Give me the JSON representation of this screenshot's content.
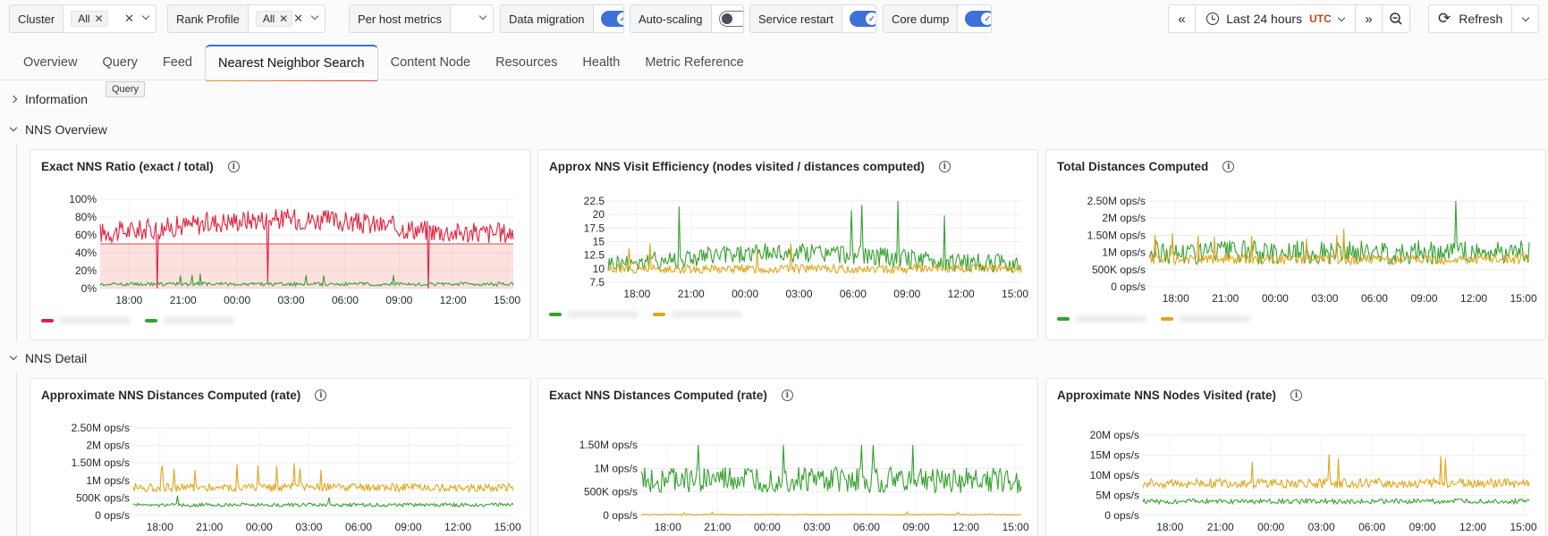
{
  "toolbar": {
    "variables": [
      {
        "label": "Cluster",
        "chips": [
          "All"
        ],
        "type": "multi"
      },
      {
        "label": "Rank Profile",
        "chips": [
          "All"
        ],
        "type": "multi"
      },
      {
        "label": "Per host metrics",
        "chips": [],
        "type": "select"
      },
      {
        "label": "Data migration",
        "toggle": true
      },
      {
        "label": "Auto-scaling",
        "toggle": false
      },
      {
        "label": "Service restart",
        "toggle": true
      },
      {
        "label": "Core dump",
        "toggle": true
      }
    ],
    "time_range": "Last 24 hours",
    "timezone": "UTC",
    "refresh_label": "Refresh"
  },
  "tabs": [
    "Overview",
    "Query",
    "Feed",
    "Nearest Neighbor Search",
    "Content Node",
    "Resources",
    "Health",
    "Metric Reference"
  ],
  "active_tab": 3,
  "tooltip": "Query",
  "rows": {
    "information": "Information",
    "overview": "NNS Overview",
    "detail": "NNS Detail"
  },
  "colors": {
    "red": "#e0213c",
    "green": "#37a032",
    "orange": "#e2a51a",
    "accent": "#3d71d9"
  },
  "x_ticks": [
    "18:00",
    "21:00",
    "00:00",
    "03:00",
    "06:00",
    "09:00",
    "12:00",
    "15:00"
  ],
  "panels": [
    {
      "title": "Exact NNS Ratio (exact / total)",
      "chart_data": {
        "type": "line",
        "title": "Exact NNS Ratio (exact / total)",
        "y_ticks": [
          "100%",
          "80%",
          "60%",
          "40%",
          "20%",
          "0%"
        ],
        "ylim": [
          0,
          100
        ],
        "threshold": 50,
        "series": [
          {
            "color": "red",
            "level": 70,
            "noise": 12,
            "trend": 8
          },
          {
            "color": "green",
            "level": 5,
            "noise": 2,
            "trend": 0
          }
        ]
      }
    },
    {
      "title": "Approx NNS Visit Efficiency (nodes visited / distances computed)",
      "chart_data": {
        "type": "line",
        "title": "Approx NNS Visit Efficiency (nodes visited / distances computed)",
        "y_ticks": [
          "22.5",
          "20",
          "17.5",
          "15",
          "12.5",
          "10",
          "7.5"
        ],
        "ylim": [
          7.5,
          22.5
        ],
        "series": [
          {
            "color": "green",
            "level": 12,
            "noise": 1.8,
            "trend": 1
          },
          {
            "color": "orange",
            "level": 10,
            "noise": 0.8,
            "trend": 0
          }
        ]
      }
    },
    {
      "title": "Total Distances Computed",
      "chart_data": {
        "type": "line",
        "title": "Total Distances Computed",
        "y_ticks": [
          "2.50M ops/s",
          "2M ops/s",
          "1.50M ops/s",
          "1M ops/s",
          "500K ops/s",
          "0 ops/s"
        ],
        "ylim": [
          0,
          2.5
        ],
        "series": [
          {
            "color": "green",
            "level": 1.0,
            "noise": 0.35,
            "trend": 0
          },
          {
            "color": "orange",
            "level": 0.8,
            "noise": 0.15,
            "trend": 0
          }
        ]
      }
    },
    {
      "title": "Approximate NNS Distances Computed (rate)",
      "chart_data": {
        "type": "line",
        "title": "Approximate NNS Distances Computed (rate)",
        "y_ticks": [
          "2.50M ops/s",
          "2M ops/s",
          "1.50M ops/s",
          "1M ops/s",
          "500K ops/s",
          "0 ops/s"
        ],
        "ylim": [
          0,
          2.5
        ],
        "series": [
          {
            "color": "orange",
            "level": 0.8,
            "noise": 0.12,
            "trend": 0
          },
          {
            "color": "green",
            "level": 0.3,
            "noise": 0.05,
            "trend": 0
          }
        ]
      }
    },
    {
      "title": "Exact NNS Distances Computed (rate)",
      "chart_data": {
        "type": "line",
        "title": "Exact NNS Distances Computed (rate)",
        "y_ticks": [
          "1.50M ops/s",
          "1M ops/s",
          "500K ops/s",
          "0 ops/s"
        ],
        "ylim": [
          0,
          1.6
        ],
        "series": [
          {
            "color": "green",
            "level": 0.8,
            "noise": 0.3,
            "trend": 0
          },
          {
            "color": "orange",
            "level": 0.02,
            "noise": 0.01,
            "trend": 0
          }
        ]
      }
    },
    {
      "title": "Approximate NNS Nodes Visited (rate)",
      "chart_data": {
        "type": "line",
        "title": "Approximate NNS Nodes Visited (rate)",
        "y_ticks": [
          "20M ops/s",
          "15M ops/s",
          "10M ops/s",
          "5M ops/s",
          "0 ops/s"
        ],
        "ylim": [
          0,
          20
        ],
        "series": [
          {
            "color": "orange",
            "level": 8,
            "noise": 1.2,
            "trend": 0
          },
          {
            "color": "green",
            "level": 3.5,
            "noise": 0.6,
            "trend": 0
          }
        ]
      }
    }
  ]
}
